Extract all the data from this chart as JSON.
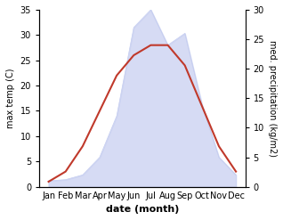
{
  "months": [
    "Jan",
    "Feb",
    "Mar",
    "Apr",
    "May",
    "Jun",
    "Jul",
    "Aug",
    "Sep",
    "Oct",
    "Nov",
    "Dec"
  ],
  "temp": [
    1,
    3,
    8,
    15,
    22,
    26,
    28,
    28,
    24,
    16,
    8,
    3
  ],
  "precip": [
    1,
    1.2,
    2,
    5,
    12,
    27,
    30,
    24,
    26,
    14,
    5,
    2
  ],
  "temp_color": "#c0392b",
  "precip_fill_color": "#c5cdf0",
  "left_ylim": [
    0,
    35
  ],
  "right_ylim": [
    0,
    30
  ],
  "left_yticks": [
    0,
    5,
    10,
    15,
    20,
    25,
    30,
    35
  ],
  "right_yticks": [
    0,
    5,
    10,
    15,
    20,
    25,
    30
  ],
  "ylabel_left": "max temp (C)",
  "ylabel_right": "med. precipitation (kg/m2)",
  "xlabel": "date (month)",
  "precip_alpha": 0.7
}
